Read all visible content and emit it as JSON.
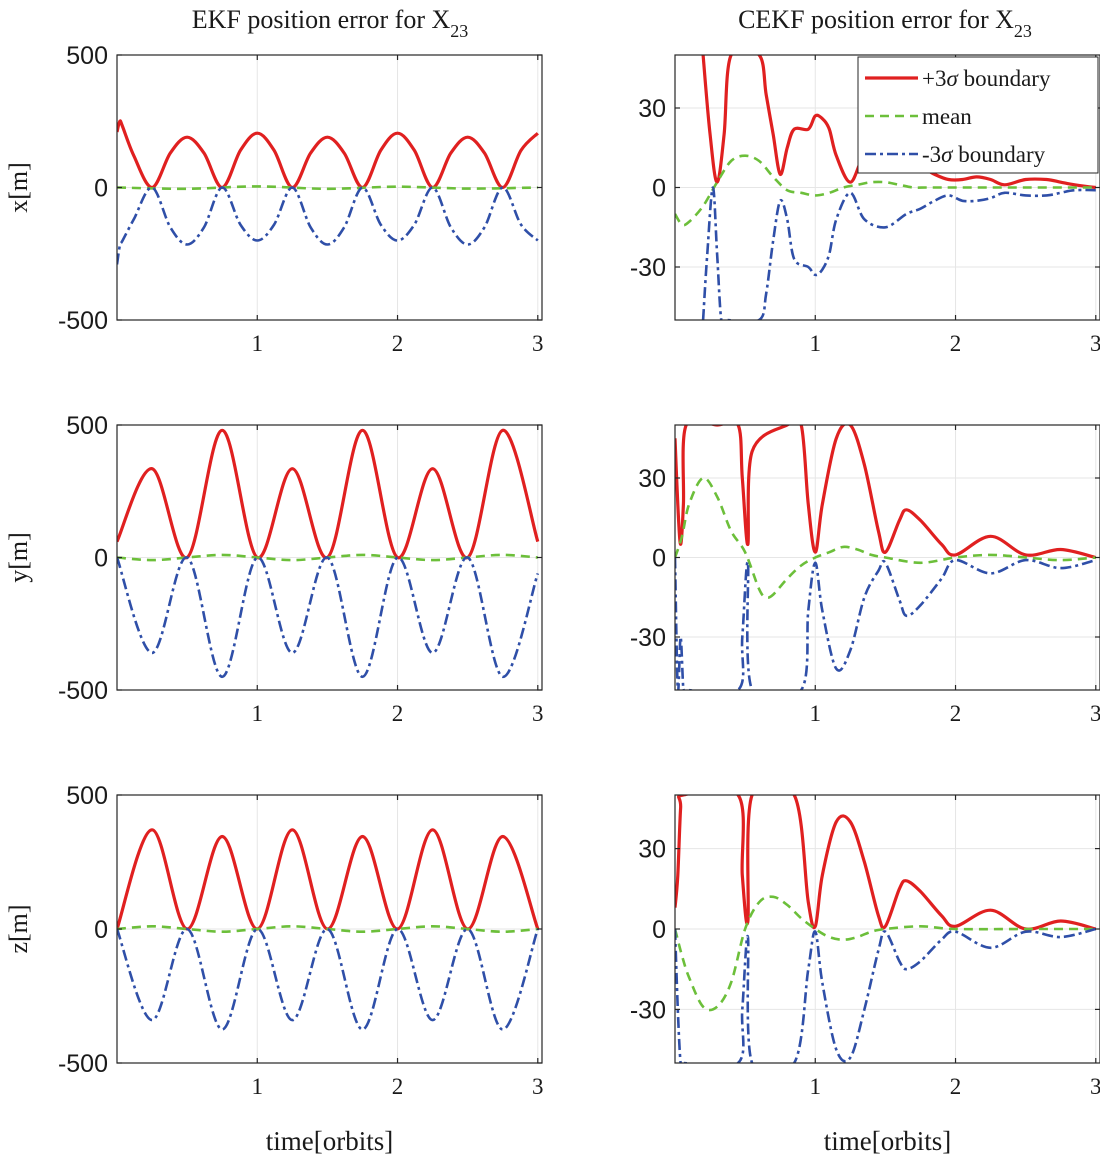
{
  "figure": {
    "column_titles": [
      {
        "main": "EKF position error for X",
        "sub": "23"
      },
      {
        "main": "CEKF position error for X",
        "sub": "23"
      }
    ],
    "row_ylabels": [
      "x[m]",
      "y[m]",
      "z[m]"
    ],
    "xlabel": "time[orbits]",
    "colors": {
      "upper": "#e02020",
      "mean": "#6cbf3a",
      "lower": "#2f4fa8",
      "grid": "#e6e6e6",
      "axis": "#262626"
    },
    "legend": {
      "placement": "top-right of top-right panel",
      "entries": [
        {
          "key": "upper",
          "text_prefix": "+3",
          "sigma": "σ",
          "text_suffix": " boundary"
        },
        {
          "key": "mean",
          "text_prefix": "mean",
          "sigma": "",
          "text_suffix": ""
        },
        {
          "key": "lower",
          "text_prefix": "-3",
          "sigma": "σ",
          "text_suffix": " boundary"
        }
      ]
    }
  },
  "chart_data": [
    {
      "id": "ekf-x",
      "type": "line",
      "title": "EKF position error for X23",
      "ylabel": "x[m]",
      "xlabel": "",
      "xlim": [
        0,
        3.03
      ],
      "ylim": [
        -500,
        500
      ],
      "xticks": [
        1,
        2,
        3
      ],
      "xtick_labels": [
        "1",
        "2",
        "3"
      ],
      "yticks": [
        -500,
        0,
        500
      ],
      "ytick_labels": [
        "-500",
        "0",
        "500"
      ],
      "series": [
        {
          "name": "+3σ boundary",
          "style": "upper",
          "x": [
            0.0,
            0.02,
            0.04,
            0.12,
            0.25,
            0.38,
            0.5,
            0.62,
            0.75,
            0.88,
            1.0,
            1.12,
            1.25,
            1.38,
            1.5,
            1.62,
            1.75,
            1.88,
            2.0,
            2.12,
            2.25,
            2.38,
            2.5,
            2.62,
            2.75,
            2.88,
            3.0
          ],
          "y": [
            210,
            250,
            230,
            120,
            0,
            130,
            190,
            130,
            0,
            140,
            205,
            140,
            0,
            130,
            190,
            130,
            0,
            140,
            205,
            140,
            0,
            130,
            190,
            130,
            0,
            140,
            205
          ]
        },
        {
          "name": "mean",
          "style": "mean",
          "x": [
            0,
            0.5,
            1.0,
            1.5,
            2.0,
            2.5,
            3.0
          ],
          "y": [
            0,
            -5,
            4,
            -5,
            3,
            -4,
            0
          ]
        },
        {
          "name": "-3σ boundary",
          "style": "lower",
          "x": [
            0.0,
            0.02,
            0.04,
            0.12,
            0.25,
            0.38,
            0.5,
            0.62,
            0.75,
            0.88,
            1.0,
            1.12,
            1.25,
            1.38,
            1.5,
            1.62,
            1.75,
            1.88,
            2.0,
            2.12,
            2.25,
            2.38,
            2.5,
            2.62,
            2.75,
            2.88,
            3.0
          ],
          "y": [
            -290,
            -220,
            -200,
            -120,
            0,
            -150,
            -215,
            -150,
            0,
            -140,
            -200,
            -140,
            0,
            -150,
            -215,
            -150,
            0,
            -140,
            -200,
            -140,
            0,
            -150,
            -215,
            -150,
            0,
            -140,
            -200
          ]
        }
      ]
    },
    {
      "id": "cekf-x",
      "type": "line",
      "title": "CEKF position error for X23",
      "ylabel": "",
      "xlabel": "",
      "xlim": [
        0,
        3.03
      ],
      "ylim": [
        -50,
        50
      ],
      "xticks": [
        1,
        2,
        3
      ],
      "xtick_labels": [
        "1",
        "2",
        "3"
      ],
      "yticks": [
        -30,
        0,
        30
      ],
      "ytick_labels": [
        "-30",
        "0",
        "30"
      ],
      "series": [
        {
          "name": "+3σ boundary",
          "style": "upper",
          "x": [
            0.2,
            0.25,
            0.3,
            0.35,
            0.4,
            0.6,
            0.65,
            0.7,
            0.75,
            0.8,
            0.85,
            0.95,
            1.0,
            1.05,
            1.1,
            1.15,
            1.25,
            1.35,
            1.5,
            1.65,
            1.75,
            1.85,
            1.95,
            2.05,
            2.15,
            2.25,
            2.35,
            2.5,
            2.65,
            2.75,
            2.85,
            3.0
          ],
          "y": [
            50,
            20,
            2,
            20,
            50,
            50,
            35,
            20,
            5,
            15,
            22,
            22,
            27,
            26,
            22,
            12,
            2,
            12,
            15,
            10,
            8,
            5,
            3,
            3,
            4,
            3,
            1,
            3,
            3,
            2,
            1,
            0
          ]
        },
        {
          "name": "mean",
          "style": "mean",
          "x": [
            0.0,
            0.05,
            0.1,
            0.2,
            0.3,
            0.4,
            0.5,
            0.6,
            0.7,
            0.8,
            0.9,
            1.0,
            1.1,
            1.2,
            1.3,
            1.4,
            1.5,
            1.6,
            1.7,
            1.8,
            2.0,
            2.5,
            3.0
          ],
          "y": [
            -10,
            -14,
            -13,
            -7,
            2,
            10,
            12,
            10,
            4,
            -1,
            -2,
            -3,
            -2,
            0,
            1,
            2,
            2,
            1,
            0,
            0,
            0,
            0,
            0
          ]
        },
        {
          "name": "-3σ boundary",
          "style": "lower",
          "x": [
            0.2,
            0.23,
            0.27,
            0.3,
            0.33,
            0.37,
            0.6,
            0.65,
            0.7,
            0.75,
            0.8,
            0.85,
            0.95,
            1.0,
            1.05,
            1.1,
            1.15,
            1.25,
            1.35,
            1.5,
            1.65,
            1.75,
            1.85,
            1.95,
            2.05,
            2.15,
            2.25,
            2.35,
            2.5,
            2.65,
            2.75,
            2.85,
            3.0
          ],
          "y": [
            -50,
            -25,
            0,
            -25,
            -50,
            -50,
            -50,
            -40,
            -20,
            -5,
            -12,
            -27,
            -30,
            -33,
            -31,
            -25,
            -12,
            -2,
            -12,
            -15,
            -10,
            -8,
            -5,
            -3,
            -5,
            -5,
            -4,
            -2,
            -3,
            -3,
            -2,
            -1,
            -1
          ]
        }
      ]
    },
    {
      "id": "ekf-y",
      "type": "line",
      "title": "",
      "ylabel": "y[m]",
      "xlabel": "",
      "xlim": [
        0,
        3.03
      ],
      "ylim": [
        -500,
        500
      ],
      "xticks": [
        1,
        2,
        3
      ],
      "xtick_labels": [
        "1",
        "2",
        "3"
      ],
      "yticks": [
        -500,
        0,
        500
      ],
      "ytick_labels": [
        "-500",
        "0",
        "500"
      ],
      "series": [
        {
          "name": "+3σ boundary",
          "style": "upper",
          "x": [
            0.0,
            0.25,
            0.5,
            0.75,
            1.0,
            1.25,
            1.5,
            1.75,
            2.0,
            2.25,
            2.5,
            2.75,
            3.0
          ],
          "y": [
            60,
            335,
            0,
            480,
            0,
            335,
            0,
            480,
            0,
            335,
            0,
            480,
            60
          ]
        },
        {
          "name": "mean",
          "style": "mean",
          "x": [
            0.0,
            0.25,
            0.5,
            0.75,
            1.0,
            1.25,
            1.5,
            1.75,
            2.0,
            2.25,
            2.5,
            2.75,
            3.0
          ],
          "y": [
            0,
            -10,
            0,
            10,
            0,
            -10,
            0,
            10,
            0,
            -10,
            0,
            10,
            0
          ]
        },
        {
          "name": "-3σ boundary",
          "style": "lower",
          "x": [
            0.0,
            0.25,
            0.5,
            0.75,
            1.0,
            1.25,
            1.5,
            1.75,
            2.0,
            2.25,
            2.5,
            2.75,
            3.0
          ],
          "y": [
            0,
            -360,
            0,
            -450,
            0,
            -360,
            0,
            -450,
            0,
            -360,
            0,
            -450,
            -60
          ]
        }
      ]
    },
    {
      "id": "cekf-y",
      "type": "line",
      "title": "",
      "ylabel": "",
      "xlabel": "",
      "xlim": [
        0,
        3.03
      ],
      "ylim": [
        -50,
        50
      ],
      "xticks": [
        1,
        2,
        3
      ],
      "xtick_labels": [
        "1",
        "2",
        "3"
      ],
      "yticks": [
        -30,
        0,
        30
      ],
      "ytick_labels": [
        "-30",
        "0",
        "30"
      ],
      "series": [
        {
          "name": "+3σ boundary",
          "style": "upper",
          "x": [
            0.0,
            0.02,
            0.04,
            0.06,
            0.08,
            0.3,
            0.45,
            0.48,
            0.52,
            0.55,
            0.8,
            0.9,
            0.95,
            1.0,
            1.05,
            1.15,
            1.25,
            1.35,
            1.45,
            1.5,
            1.6,
            1.65,
            1.75,
            1.9,
            2.0,
            2.25,
            2.5,
            2.75,
            3.0
          ],
          "y": [
            45,
            20,
            5,
            20,
            50,
            50,
            50,
            30,
            5,
            40,
            50,
            50,
            20,
            2,
            20,
            45,
            50,
            35,
            10,
            2,
            14,
            18,
            14,
            5,
            1,
            8,
            1,
            3,
            0
          ]
        },
        {
          "name": "mean",
          "style": "mean",
          "x": [
            0.0,
            0.05,
            0.1,
            0.2,
            0.3,
            0.4,
            0.5,
            0.6,
            0.65,
            0.7,
            0.8,
            0.9,
            1.0,
            1.1,
            1.2,
            1.3,
            1.4,
            1.5,
            1.75,
            2.0,
            2.25,
            2.5,
            2.75,
            3.0
          ],
          "y": [
            0,
            8,
            20,
            30,
            23,
            10,
            2,
            -12,
            -15,
            -14,
            -8,
            -3,
            0,
            2,
            4,
            3,
            1,
            0,
            -2,
            0,
            1,
            0,
            -1,
            0
          ]
        },
        {
          "name": "-3σ boundary",
          "style": "lower",
          "x": [
            0.0,
            0.02,
            0.04,
            0.06,
            0.08,
            0.45,
            0.48,
            0.52,
            0.55,
            0.9,
            0.95,
            1.0,
            1.05,
            1.15,
            1.25,
            1.35,
            1.45,
            1.5,
            1.6,
            1.65,
            1.75,
            1.9,
            2.0,
            2.25,
            2.5,
            2.75,
            3.0
          ],
          "y": [
            0,
            -50,
            -30,
            -50,
            -50,
            -50,
            -30,
            -2,
            -50,
            -50,
            -20,
            -2,
            -20,
            -42,
            -35,
            -15,
            -5,
            -2,
            -16,
            -22,
            -18,
            -8,
            -1,
            -6,
            -1,
            -4,
            -1
          ]
        }
      ]
    },
    {
      "id": "ekf-z",
      "type": "line",
      "title": "",
      "ylabel": "z[m]",
      "xlabel": "time[orbits]",
      "xlim": [
        0,
        3.03
      ],
      "ylim": [
        -500,
        500
      ],
      "xticks": [
        1,
        2,
        3
      ],
      "xtick_labels": [
        "1",
        "2",
        "3"
      ],
      "yticks": [
        -500,
        0,
        500
      ],
      "ytick_labels": [
        "-500",
        "0",
        "500"
      ],
      "series": [
        {
          "name": "+3σ boundary",
          "style": "upper",
          "x": [
            0.0,
            0.25,
            0.5,
            0.75,
            1.0,
            1.25,
            1.5,
            1.75,
            2.0,
            2.25,
            2.5,
            2.75,
            3.0
          ],
          "y": [
            0,
            370,
            0,
            345,
            0,
            370,
            0,
            345,
            0,
            370,
            0,
            345,
            0
          ]
        },
        {
          "name": "mean",
          "style": "mean",
          "x": [
            0.0,
            0.25,
            0.5,
            0.75,
            1.0,
            1.25,
            1.5,
            1.75,
            2.0,
            2.25,
            2.5,
            2.75,
            3.0
          ],
          "y": [
            0,
            10,
            0,
            -10,
            0,
            10,
            0,
            -10,
            0,
            10,
            0,
            -10,
            0
          ]
        },
        {
          "name": "-3σ boundary",
          "style": "lower",
          "x": [
            0.0,
            0.25,
            0.5,
            0.75,
            1.0,
            1.25,
            1.5,
            1.75,
            2.0,
            2.25,
            2.5,
            2.75,
            3.0
          ],
          "y": [
            0,
            -340,
            0,
            -375,
            0,
            -340,
            0,
            -375,
            0,
            -340,
            0,
            -375,
            0
          ]
        }
      ]
    },
    {
      "id": "cekf-z",
      "type": "line",
      "title": "",
      "ylabel": "",
      "xlabel": "time[orbits]",
      "xlim": [
        0,
        3.03
      ],
      "ylim": [
        -50,
        50
      ],
      "xticks": [
        1,
        2,
        3
      ],
      "xtick_labels": [
        "1",
        "2",
        "3"
      ],
      "yticks": [
        -30,
        0,
        30
      ],
      "ytick_labels": [
        "-30",
        "0",
        "30"
      ],
      "series": [
        {
          "name": "+3σ boundary",
          "style": "upper",
          "x": [
            0.0,
            0.02,
            0.04,
            0.06,
            0.45,
            0.48,
            0.52,
            0.55,
            0.85,
            0.95,
            1.0,
            1.05,
            1.15,
            1.25,
            1.35,
            1.45,
            1.5,
            1.6,
            1.65,
            1.75,
            1.9,
            2.0,
            2.25,
            2.5,
            2.75,
            3.0
          ],
          "y": [
            8,
            20,
            45,
            50,
            50,
            20,
            3,
            50,
            50,
            10,
            1,
            20,
            40,
            40,
            25,
            5,
            1,
            15,
            18,
            14,
            5,
            1,
            7,
            0,
            3,
            0
          ]
        },
        {
          "name": "mean",
          "style": "mean",
          "x": [
            0.0,
            0.05,
            0.1,
            0.2,
            0.3,
            0.4,
            0.5,
            0.6,
            0.7,
            0.8,
            0.9,
            1.0,
            1.1,
            1.2,
            1.3,
            1.4,
            1.5,
            1.75,
            2.0,
            2.5,
            3.0
          ],
          "y": [
            0,
            -10,
            -18,
            -29,
            -29,
            -20,
            0,
            10,
            12,
            9,
            4,
            0,
            -3,
            -4,
            -3,
            -1,
            0,
            1,
            0,
            0,
            0
          ]
        },
        {
          "name": "-3σ boundary",
          "style": "lower",
          "x": [
            0.0,
            0.02,
            0.04,
            0.06,
            0.45,
            0.48,
            0.52,
            0.55,
            0.85,
            0.95,
            1.0,
            1.05,
            1.15,
            1.25,
            1.35,
            1.45,
            1.5,
            1.6,
            1.65,
            1.75,
            1.9,
            2.0,
            2.25,
            2.5,
            2.75,
            3.0
          ],
          "y": [
            0,
            -30,
            -50,
            -50,
            -50,
            -30,
            -3,
            -50,
            -50,
            -15,
            -1,
            -20,
            -45,
            -48,
            -30,
            -8,
            -1,
            -12,
            -15,
            -12,
            -4,
            -1,
            -7,
            -1,
            -3,
            0
          ]
        }
      ]
    }
  ]
}
